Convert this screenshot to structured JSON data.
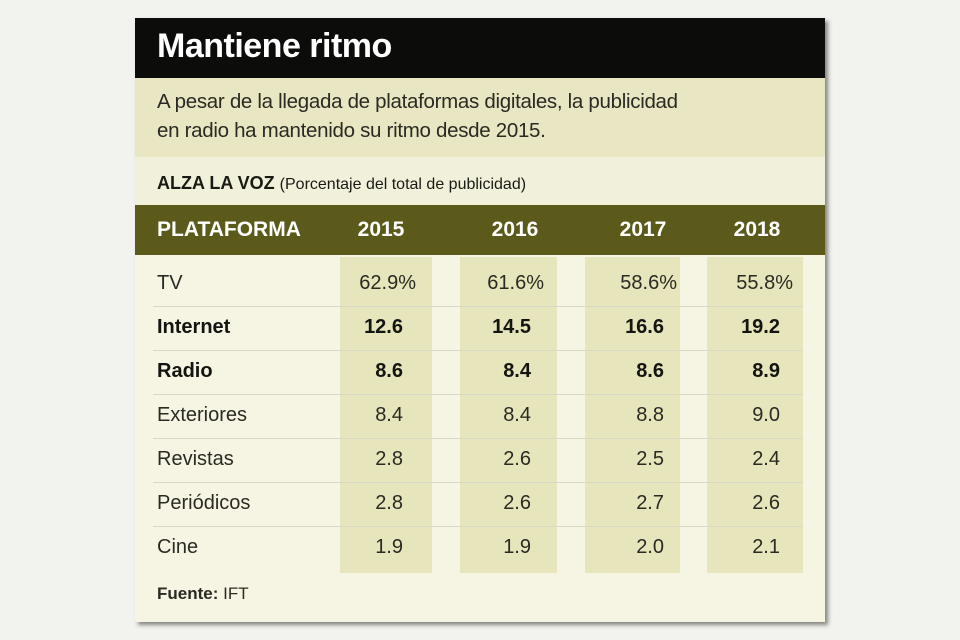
{
  "header": {
    "title": "Mantiene ritmo",
    "subtitle_lines": [
      "A pesar de la llegada de plataformas digitales, la publicidad",
      "en radio ha mantenido su ritmo desde 2015."
    ]
  },
  "table": {
    "label": "ALZA LA VOZ",
    "label_note": "(Porcentaje del total de publicidad)",
    "columns": [
      "PLATAFORMA",
      "2015",
      "2016",
      "2017",
      "2018"
    ],
    "rows": [
      [
        "TV",
        "62.9%",
        "61.6%",
        "58.6%",
        "55.8%"
      ],
      [
        "Internet",
        "12.6",
        "14.5",
        "16.6",
        "19.2"
      ],
      [
        "Radio",
        "8.6",
        "8.4",
        "8.6",
        "8.9"
      ],
      [
        "Exteriores",
        "8.4",
        "8.4",
        "8.8",
        "9.0"
      ],
      [
        "Revistas",
        "2.8",
        "2.6",
        "2.5",
        "2.4"
      ],
      [
        "Periódicos",
        "2.8",
        "2.6",
        "2.7",
        "2.6"
      ],
      [
        "Cine",
        "1.9",
        "1.9",
        "2.0",
        "2.1"
      ]
    ]
  },
  "source": {
    "label": "Fuente:",
    "text": "IFT"
  }
}
